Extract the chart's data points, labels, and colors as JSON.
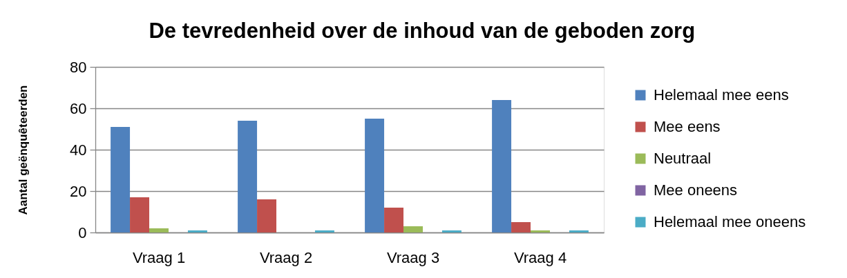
{
  "chart_data": {
    "type": "bar",
    "title": "De tevredenheid over de inhoud van de geboden zorg",
    "ylabel": "Aantal geënquêteerden",
    "categories": [
      "Vraag 1",
      "Vraag 2",
      "Vraag 3",
      "Vraag 4"
    ],
    "series": [
      {
        "name": "Helemaal mee eens",
        "color": "#4f81bd",
        "values": [
          51,
          54,
          55,
          64
        ]
      },
      {
        "name": "Mee eens",
        "color": "#c0504d",
        "values": [
          17,
          16,
          12,
          5
        ]
      },
      {
        "name": "Neutraal",
        "color": "#9bbb59",
        "values": [
          2,
          0,
          3,
          1
        ]
      },
      {
        "name": "Mee oneens",
        "color": "#8064a2",
        "values": [
          0,
          0,
          0,
          0
        ]
      },
      {
        "name": "Helemaal mee oneens",
        "color": "#4bacc6",
        "values": [
          1,
          1,
          1,
          1
        ]
      }
    ],
    "ylim": [
      0,
      80
    ],
    "yticks": [
      0,
      20,
      40,
      60,
      80
    ],
    "grid": "y",
    "legend": "right"
  }
}
